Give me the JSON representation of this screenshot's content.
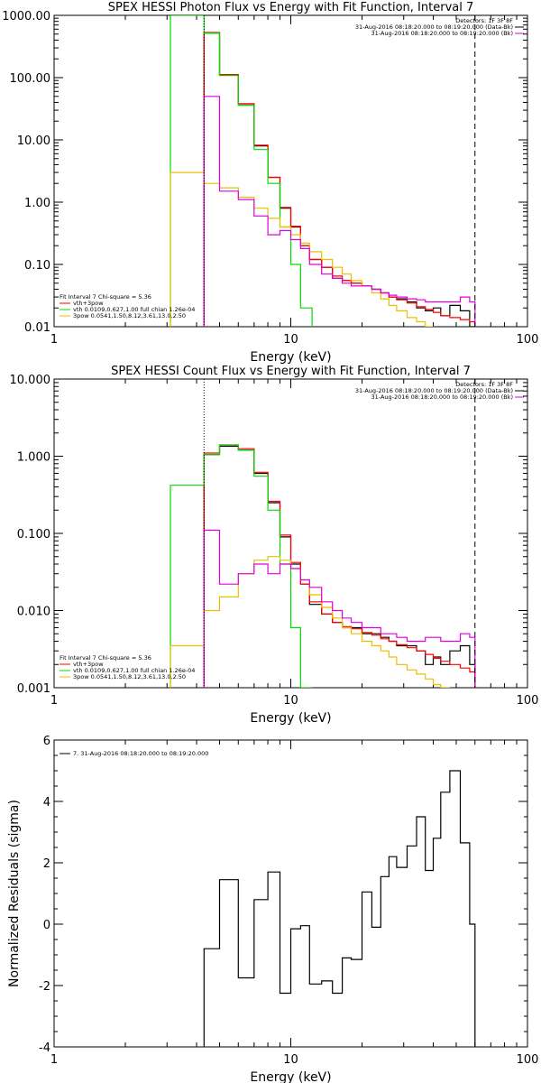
{
  "chart_data": [
    {
      "type": "line",
      "title": "SPEX HESSI Photon Flux vs Energy with Fit Function, Interval 7",
      "xlabel": "Energy (keV)",
      "ylabel": "",
      "xscale": "log",
      "yscale": "log",
      "xlim": [
        1,
        100
      ],
      "ylim": [
        0.01,
        1000
      ],
      "xticks": [
        1,
        10,
        100
      ],
      "xtick_labels": [
        "1",
        "10",
        "100"
      ],
      "yticks": [
        0.01,
        0.1,
        1,
        10,
        100,
        1000
      ],
      "ytick_labels": [
        "0.01",
        "0.10",
        "1.00",
        "10.00",
        "100.00",
        "1000.00"
      ],
      "vlines": [
        {
          "x": 4.3,
          "style": "dotted",
          "color": "#000000"
        },
        {
          "x": 60,
          "style": "dashed",
          "color": "#000000"
        }
      ],
      "legend_top_right": [
        {
          "text": "Detectors: 1F 3F 8F",
          "color": "",
          "line": false
        },
        {
          "text": "31-Aug-2016 08:18:20.000 to 08:19:20.000 (Data-Bk)",
          "color": "#000000",
          "line": true
        },
        {
          "text": "31-Aug-2016 08:18:20.000 to 08:19:20.000 (Bk)",
          "color": "#e000e0",
          "line": true
        }
      ],
      "legend_bottom_left": [
        {
          "text": "Fit Interval 7   Chi-square = 5.36",
          "color": "",
          "line": false
        },
        {
          "text": "vth+3pow",
          "color": "#ff0000",
          "line": true
        },
        {
          "text": "vth 0.0109,0.627,1.00  full chian 1.26e-04",
          "color": "#00dd00",
          "line": true
        },
        {
          "text": "3pow 0.0541,1.50,8.12,3.61,13.0,2.50",
          "color": "#e8c000",
          "line": true
        }
      ],
      "series": [
        {
          "color": "#000000",
          "edges": [
            4.3,
            5,
            6,
            7,
            8,
            9,
            10,
            11,
            12,
            13.5,
            15,
            16.5,
            18,
            20,
            22,
            24,
            26,
            28,
            31,
            34,
            37,
            40,
            43,
            47,
            52,
            57,
            60
          ],
          "values": [
            520,
            110,
            38,
            8,
            2.5,
            0.8,
            0.4,
            0.2,
            0.12,
            0.09,
            0.06,
            0.055,
            0.05,
            0.045,
            0.04,
            0.035,
            0.03,
            0.028,
            0.025,
            0.02,
            0.018,
            0.02,
            0.015,
            0.022,
            0.018,
            0.01
          ]
        },
        {
          "color": "#ff0000",
          "edges": [
            4.3,
            5,
            6,
            7,
            8,
            9,
            10,
            11,
            12,
            13.5,
            15,
            16.5,
            18,
            20,
            22,
            24,
            26,
            28,
            31,
            34,
            37,
            40,
            43,
            47,
            52,
            57,
            60
          ],
          "values": [
            530,
            112,
            38,
            8.2,
            2.5,
            0.82,
            0.41,
            0.2,
            0.12,
            0.09,
            0.065,
            0.055,
            0.05,
            0.045,
            0.04,
            0.035,
            0.03,
            0.027,
            0.024,
            0.021,
            0.019,
            0.017,
            0.015,
            0.014,
            0.013,
            0.012
          ]
        },
        {
          "color": "#00dd00",
          "edges": [
            3.1,
            4.3,
            5,
            6,
            7,
            8,
            9,
            10,
            11,
            12.3
          ],
          "values": [
            1000,
            520,
            108,
            36,
            7,
            2,
            0.4,
            0.1,
            0.02
          ]
        },
        {
          "color": "#e8c000",
          "edges": [
            3.1,
            4.3,
            5,
            6,
            7,
            8,
            9,
            10,
            11,
            12,
            13.5,
            15,
            16.5,
            18,
            20,
            22,
            24,
            26,
            28,
            31,
            34,
            37,
            40
          ],
          "values": [
            3,
            2,
            1.7,
            1.2,
            0.8,
            0.55,
            0.4,
            0.3,
            0.22,
            0.16,
            0.12,
            0.09,
            0.07,
            0.055,
            0.045,
            0.035,
            0.028,
            0.022,
            0.018,
            0.014,
            0.012,
            0.01
          ]
        },
        {
          "color": "#e000e0",
          "edges": [
            4.3,
            5,
            6,
            7,
            8,
            9,
            10,
            11,
            12,
            13.5,
            15,
            16.5,
            18,
            20,
            22,
            24,
            26,
            28,
            31,
            34,
            37,
            40,
            43,
            47,
            52,
            57,
            60
          ],
          "values": [
            50,
            1.5,
            1.1,
            0.6,
            0.3,
            0.35,
            0.25,
            0.18,
            0.1,
            0.07,
            0.06,
            0.05,
            0.045,
            0.045,
            0.04,
            0.035,
            0.032,
            0.03,
            0.028,
            0.027,
            0.025,
            0.025,
            0.025,
            0.025,
            0.03,
            0.025
          ]
        }
      ]
    },
    {
      "type": "line",
      "title": "SPEX HESSI Count Flux vs Energy with Fit Function, Interval 7",
      "xlabel": "Energy (keV)",
      "ylabel": "",
      "xscale": "log",
      "yscale": "log",
      "xlim": [
        1,
        100
      ],
      "ylim": [
        0.001,
        10
      ],
      "xticks": [
        1,
        10,
        100
      ],
      "xtick_labels": [
        "1",
        "10",
        "100"
      ],
      "yticks": [
        0.001,
        0.01,
        0.1,
        1,
        10
      ],
      "ytick_labels": [
        "0.001",
        "0.010",
        "0.100",
        "1.000",
        "10.000"
      ],
      "vlines": [
        {
          "x": 4.3,
          "style": "dotted",
          "color": "#000000"
        },
        {
          "x": 60,
          "style": "dashed",
          "color": "#000000"
        }
      ],
      "legend_top_right": [
        {
          "text": "Detectors: 1F 3F 8F",
          "color": "",
          "line": false
        },
        {
          "text": "31-Aug-2016 08:18:20.000 to 08:19:20.000 (Data-Bk)",
          "color": "#000000",
          "line": true
        },
        {
          "text": "31-Aug-2016 08:18:20.000 to 08:19:20.000 (Bk)",
          "color": "#e000e0",
          "line": true
        }
      ],
      "legend_bottom_left": [
        {
          "text": "Fit Interval 7   Chi-square = 5.36",
          "color": "",
          "line": false
        },
        {
          "text": "vth+3pow",
          "color": "#ff0000",
          "line": true
        },
        {
          "text": "vth 0.0109,0.627,1.00  full chian 1.26e-04",
          "color": "#00dd00",
          "line": true
        },
        {
          "text": "3pow 0.0541,1.50,8.12,3.61,13.0,2.50",
          "color": "#e8c000",
          "line": true
        }
      ],
      "series": [
        {
          "color": "#000000",
          "edges": [
            4.3,
            5,
            6,
            7,
            8,
            9,
            10,
            11,
            12,
            13.5,
            15,
            16.5,
            18,
            20,
            22,
            24,
            26,
            28,
            31,
            34,
            37,
            40,
            43,
            47,
            52,
            57,
            60
          ],
          "values": [
            1.05,
            1.35,
            1.2,
            0.6,
            0.25,
            0.09,
            0.04,
            0.022,
            0.012,
            0.009,
            0.007,
            0.006,
            0.006,
            0.005,
            0.005,
            0.0045,
            0.004,
            0.0035,
            0.0035,
            0.003,
            0.002,
            0.0025,
            0.002,
            0.003,
            0.0035,
            0.002
          ]
        },
        {
          "color": "#ff0000",
          "edges": [
            4.3,
            5,
            6,
            7,
            8,
            9,
            10,
            11,
            12,
            13.5,
            15,
            16.5,
            18,
            20,
            22,
            24,
            26,
            28,
            31,
            34,
            37,
            40,
            43,
            47,
            52,
            57,
            60
          ],
          "values": [
            1.1,
            1.4,
            1.25,
            0.62,
            0.26,
            0.095,
            0.042,
            0.022,
            0.013,
            0.009,
            0.007,
            0.0062,
            0.0058,
            0.0052,
            0.0048,
            0.0043,
            0.004,
            0.0036,
            0.0033,
            0.003,
            0.0027,
            0.0024,
            0.0022,
            0.002,
            0.0018,
            0.0016
          ]
        },
        {
          "color": "#00dd00",
          "edges": [
            3.1,
            4.3,
            5,
            6,
            7,
            8,
            9,
            10,
            11,
            12.3
          ],
          "values": [
            0.42,
            1.05,
            1.4,
            1.2,
            0.55,
            0.2,
            0.04,
            0.006,
            0.001
          ]
        },
        {
          "color": "#e8c000",
          "edges": [
            3.1,
            4.3,
            5,
            6,
            7,
            8,
            9,
            10,
            11,
            12,
            13.5,
            15,
            16.5,
            18,
            20,
            22,
            24,
            26,
            28,
            31,
            34,
            37,
            40,
            43,
            47
          ],
          "values": [
            0.0035,
            0.01,
            0.015,
            0.03,
            0.045,
            0.05,
            0.045,
            0.035,
            0.025,
            0.016,
            0.011,
            0.008,
            0.006,
            0.005,
            0.004,
            0.0035,
            0.003,
            0.0025,
            0.002,
            0.0017,
            0.0015,
            0.0013,
            0.0011,
            0.001
          ]
        },
        {
          "color": "#e000e0",
          "edges": [
            4.3,
            5,
            6,
            7,
            8,
            9,
            10,
            11,
            12,
            13.5,
            15,
            16.5,
            18,
            20,
            22,
            24,
            26,
            28,
            31,
            34,
            37,
            40,
            43,
            47,
            52,
            57,
            60
          ],
          "values": [
            0.11,
            0.022,
            0.03,
            0.04,
            0.03,
            0.04,
            0.035,
            0.025,
            0.02,
            0.013,
            0.01,
            0.008,
            0.007,
            0.006,
            0.006,
            0.005,
            0.005,
            0.0045,
            0.004,
            0.004,
            0.0045,
            0.0045,
            0.004,
            0.004,
            0.005,
            0.0045
          ]
        }
      ]
    },
    {
      "type": "line",
      "title": "",
      "xlabel": "Energy (keV)",
      "ylabel": "Normalized Residuals (sigma)",
      "xscale": "log",
      "yscale": "linear",
      "xlim": [
        1,
        100
      ],
      "ylim": [
        -4,
        6
      ],
      "xticks": [
        1,
        10,
        100
      ],
      "xtick_labels": [
        "1",
        "10",
        "100"
      ],
      "yticks": [
        -4,
        -2,
        0,
        2,
        4,
        6
      ],
      "ytick_labels": [
        "-4",
        "-2",
        "0",
        "2",
        "4",
        "6"
      ],
      "vlines": [],
      "legend_top_left": [
        {
          "text": "7. 31-Aug-2016 08:18:20.000 to 08:19:20.000",
          "color": "#000000",
          "line": true
        }
      ],
      "series": [
        {
          "color": "#000000",
          "edges": [
            4.3,
            5,
            6,
            7,
            8,
            9,
            10,
            11,
            12,
            13.5,
            15,
            16.5,
            18,
            20,
            22,
            24,
            26,
            28,
            31,
            34,
            37,
            40,
            43,
            47,
            52,
            57,
            60
          ],
          "values": [
            -0.8,
            1.45,
            -1.75,
            0.8,
            1.7,
            -2.25,
            -0.15,
            -0.05,
            -1.95,
            -1.85,
            -2.25,
            -1.1,
            -1.15,
            1.05,
            -0.1,
            1.55,
            2.2,
            1.85,
            2.55,
            3.5,
            1.75,
            2.8,
            4.3,
            5,
            2.65,
            0
          ]
        }
      ]
    }
  ]
}
